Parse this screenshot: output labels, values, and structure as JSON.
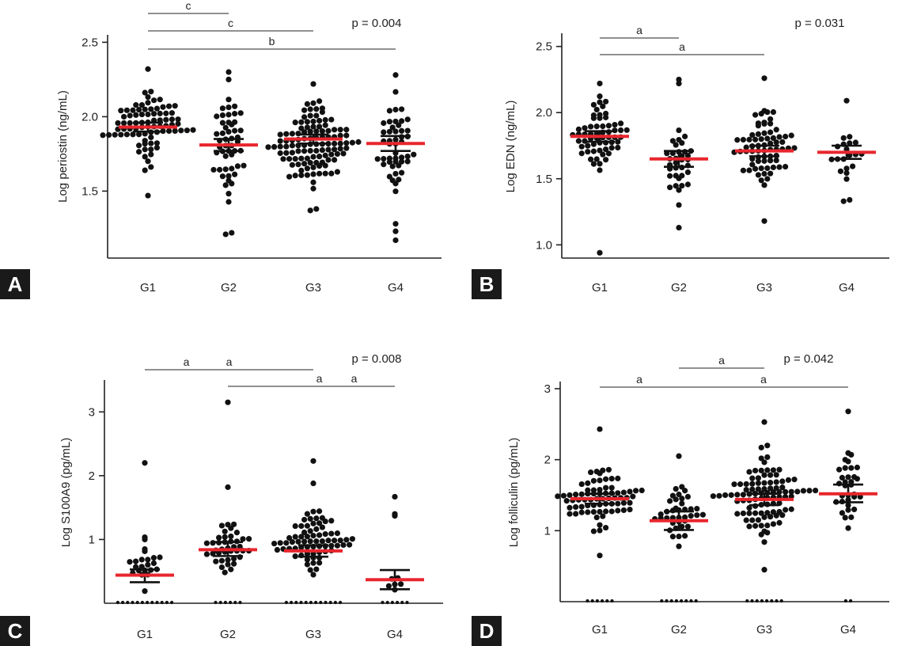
{
  "colors": {
    "dot": "#111111",
    "median": "#e8262d",
    "axis": "#222222",
    "badge": "#1a1a1a",
    "badge_text": "#ffffff"
  },
  "chart_data": [
    {
      "panel": "A",
      "type": "scatter",
      "title": "",
      "xlabel": "",
      "ylabel": "Log periostin (ng/mL)",
      "categories": [
        "G1",
        "G2",
        "G3",
        "G4"
      ],
      "ylim": [
        1.05,
        2.55
      ],
      "yticks": [
        1.5,
        2.0,
        2.5
      ],
      "ytick_labels": [
        "1.5",
        "2.0",
        "2.5"
      ],
      "p_label": "p = 0.004",
      "groups": [
        {
          "name": "G1",
          "n": 80,
          "lo": 1.6,
          "hi": 2.3,
          "outliers": [
            1.47,
            2.32
          ],
          "median": 1.93,
          "err": [
            1.9,
            1.96
          ],
          "floor_count": 0
        },
        {
          "name": "G2",
          "n": 48,
          "lo": 1.32,
          "hi": 2.2,
          "outliers": [
            1.21,
            1.22,
            2.25,
            2.3
          ],
          "median": 1.81,
          "err": [
            1.77,
            1.85
          ],
          "floor_count": 0
        },
        {
          "name": "G3",
          "n": 110,
          "lo": 1.43,
          "hi": 2.2,
          "outliers": [
            1.37,
            1.38,
            2.22
          ],
          "median": 1.85,
          "err": [
            1.82,
            1.88
          ],
          "floor_count": 0
        },
        {
          "name": "G4",
          "n": 46,
          "lo": 1.35,
          "hi": 2.2,
          "outliers": [
            1.17,
            1.23,
            1.28,
            2.28
          ],
          "median": 1.82,
          "err": [
            1.77,
            1.87
          ],
          "floor_count": 0
        }
      ],
      "comparisons": [
        {
          "from": "G1",
          "to": "G2",
          "label": "c"
        },
        {
          "from": "G1",
          "to": "G3",
          "label": "c"
        },
        {
          "from": "G1",
          "to": "G4",
          "label": "b"
        }
      ]
    },
    {
      "panel": "B",
      "type": "scatter",
      "title": "",
      "xlabel": "",
      "ylabel": "Log EDN (ng/mL)",
      "categories": [
        "G1",
        "G2",
        "G3",
        "G4"
      ],
      "ylim": [
        0.9,
        2.6
      ],
      "yticks": [
        1.0,
        1.5,
        2.0,
        2.5
      ],
      "ytick_labels": [
        "1.0",
        "1.5",
        "2.0",
        "2.5"
      ],
      "p_label": "p = 0.031",
      "groups": [
        {
          "name": "G1",
          "n": 60,
          "lo": 1.4,
          "hi": 2.2,
          "outliers": [
            0.94,
            2.22
          ],
          "median": 1.82,
          "err": [
            1.78,
            1.86
          ],
          "floor_count": 0
        },
        {
          "name": "G2",
          "n": 34,
          "lo": 1.15,
          "hi": 1.95,
          "outliers": [
            1.13,
            2.22,
            2.25
          ],
          "median": 1.65,
          "err": [
            1.59,
            1.71
          ],
          "floor_count": 0
        },
        {
          "name": "G3",
          "n": 68,
          "lo": 1.3,
          "hi": 2.2,
          "outliers": [
            1.18,
            2.26
          ],
          "median": 1.71,
          "err": [
            1.67,
            1.75
          ],
          "floor_count": 0
        },
        {
          "name": "G4",
          "n": 18,
          "lo": 1.4,
          "hi": 1.95,
          "outliers": [
            1.33,
            1.34,
            2.09
          ],
          "median": 1.7,
          "err": [
            1.65,
            1.75
          ],
          "floor_count": 0
        }
      ],
      "comparisons": [
        {
          "from": "G1",
          "to": "G2",
          "label": "a"
        },
        {
          "from": "G1",
          "to": "G3",
          "label": "a"
        }
      ]
    },
    {
      "panel": "C",
      "type": "scatter",
      "title": "",
      "xlabel": "",
      "ylabel": "Log S100A9 (pg/mL)",
      "categories": [
        "G1",
        "G2",
        "G3",
        "G4"
      ],
      "ylim": [
        0,
        3.5
      ],
      "yticks": [
        1,
        2,
        3
      ],
      "ytick_labels": [
        "1",
        "2",
        "3"
      ],
      "p_label": "p = 0.008",
      "groups": [
        {
          "name": "G1",
          "n": 22,
          "lo": 0.3,
          "hi": 1.5,
          "outliers": [
            2.2
          ],
          "median": 0.44,
          "err": [
            0.33,
            0.53
          ],
          "floor_count": 12
        },
        {
          "name": "G2",
          "n": 40,
          "lo": 0.5,
          "hi": 1.55,
          "outliers": [
            1.82,
            3.15
          ],
          "median": 0.84,
          "err": [
            0.74,
            0.96
          ],
          "floor_count": 6
        },
        {
          "name": "G3",
          "n": 70,
          "lo": 0.5,
          "hi": 1.75,
          "outliers": [
            1.88,
            2.23
          ],
          "median": 0.82,
          "err": [
            0.73,
            0.91
          ],
          "floor_count": 12
        },
        {
          "name": "G4",
          "n": 6,
          "lo": 0.1,
          "hi": 0.5,
          "outliers": [
            1.37,
            1.4,
            1.67
          ],
          "median": 0.37,
          "err": [
            0.22,
            0.52
          ],
          "floor_count": 6
        }
      ],
      "comparisons": [
        {
          "from": "G1",
          "to": "G2",
          "label": "a"
        },
        {
          "from": "G2",
          "to": "G4",
          "label": "a"
        },
        {
          "from": "G1",
          "to": "G3",
          "label": "a"
        },
        {
          "from": "G3",
          "to": "G4",
          "label": "a"
        }
      ]
    },
    {
      "panel": "D",
      "type": "scatter",
      "title": "",
      "xlabel": "",
      "ylabel": "Log folliculin (pg/mL)",
      "categories": [
        "G1",
        "G2",
        "G3",
        "G4"
      ],
      "ylim": [
        0,
        3.1
      ],
      "yticks": [
        1,
        2,
        3
      ],
      "ytick_labels": [
        "1",
        "2",
        "3"
      ],
      "p_label": "p = 0.042",
      "groups": [
        {
          "name": "G1",
          "n": 72,
          "lo": 0.8,
          "hi": 2.05,
          "outliers": [
            0.65,
            2.43
          ],
          "median": 1.45,
          "err": [
            1.38,
            1.52
          ],
          "floor_count": 6
        },
        {
          "name": "G2",
          "n": 38,
          "lo": 0.85,
          "hi": 1.95,
          "outliers": [
            2.05
          ],
          "median": 1.14,
          "err": [
            1.01,
            1.27
          ],
          "floor_count": 8
        },
        {
          "name": "G3",
          "n": 95,
          "lo": 0.85,
          "hi": 2.35,
          "outliers": [
            0.45,
            2.53
          ],
          "median": 1.44,
          "err": [
            1.36,
            1.52
          ],
          "floor_count": 8
        },
        {
          "name": "G4",
          "n": 32,
          "lo": 0.95,
          "hi": 2.3,
          "outliers": [
            2.68
          ],
          "median": 1.52,
          "err": [
            1.4,
            1.65
          ],
          "floor_count": 2
        }
      ],
      "comparisons": [
        {
          "from": "G1",
          "to": "G2",
          "label": "a"
        },
        {
          "from": "G2",
          "to": "G3",
          "label": "a"
        },
        {
          "from": "G2",
          "to": "G4",
          "label": "a"
        }
      ]
    }
  ]
}
